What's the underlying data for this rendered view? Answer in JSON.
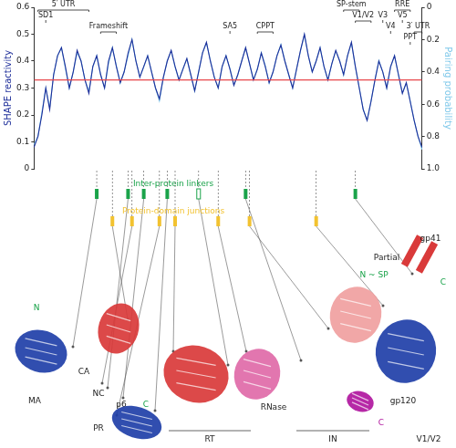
{
  "chart_data": {
    "type": "line",
    "categories": [
      null,
      null,
      null,
      null,
      null,
      null,
      null,
      null,
      null,
      null,
      null,
      null,
      null,
      null,
      null,
      null,
      null,
      null,
      null,
      null,
      null,
      null,
      null,
      null,
      null,
      null,
      null,
      null,
      null,
      null,
      null,
      null,
      null,
      null,
      null,
      null,
      null,
      null,
      null,
      null,
      null,
      null,
      null,
      null,
      null,
      null,
      null,
      null,
      null,
      null,
      null,
      null,
      null,
      null,
      null,
      null,
      null,
      null,
      null,
      null,
      null,
      null,
      null,
      null,
      null,
      null,
      null,
      null,
      null,
      null,
      null,
      null,
      null,
      null,
      null,
      null,
      null,
      null,
      null,
      null,
      null,
      null,
      null,
      null,
      null,
      null,
      null,
      null,
      null,
      null,
      null,
      null,
      null,
      null,
      null,
      null,
      null,
      null,
      null,
      null
    ],
    "series": [
      {
        "name": "SHAPE reactivity",
        "color": "#1f2f9a",
        "values": [
          0.08,
          0.12,
          0.2,
          0.3,
          0.22,
          0.35,
          0.42,
          0.45,
          0.38,
          0.3,
          0.36,
          0.44,
          0.4,
          0.33,
          0.28,
          0.38,
          0.42,
          0.35,
          0.3,
          0.4,
          0.45,
          0.38,
          0.32,
          0.36,
          0.43,
          0.48,
          0.4,
          0.34,
          0.38,
          0.42,
          0.36,
          0.3,
          0.26,
          0.34,
          0.4,
          0.44,
          0.38,
          0.33,
          0.37,
          0.41,
          0.35,
          0.29,
          0.36,
          0.43,
          0.47,
          0.4,
          0.34,
          0.3,
          0.38,
          0.42,
          0.37,
          0.31,
          0.35,
          0.4,
          0.45,
          0.39,
          0.33,
          0.37,
          0.43,
          0.38,
          0.32,
          0.36,
          0.42,
          0.46,
          0.4,
          0.35,
          0.3,
          0.37,
          0.44,
          0.5,
          0.42,
          0.36,
          0.4,
          0.45,
          0.38,
          0.33,
          0.39,
          0.44,
          0.4,
          0.35,
          0.42,
          0.47,
          0.38,
          0.3,
          0.22,
          0.18,
          0.25,
          0.33,
          0.4,
          0.36,
          0.3,
          0.38,
          0.42,
          0.35,
          0.28,
          0.32,
          0.25,
          0.18,
          0.12,
          0.08
        ]
      },
      {
        "name": "Pairing probability",
        "color": "#7fc8ea",
        "axis": "y2",
        "values": [
          0.85,
          0.8,
          0.65,
          0.5,
          0.62,
          0.42,
          0.3,
          0.25,
          0.38,
          0.5,
          0.4,
          0.28,
          0.33,
          0.45,
          0.52,
          0.37,
          0.3,
          0.42,
          0.5,
          0.35,
          0.25,
          0.36,
          0.47,
          0.4,
          0.3,
          0.2,
          0.33,
          0.43,
          0.37,
          0.3,
          0.4,
          0.5,
          0.58,
          0.44,
          0.33,
          0.27,
          0.37,
          0.45,
          0.38,
          0.32,
          0.42,
          0.52,
          0.4,
          0.28,
          0.22,
          0.33,
          0.43,
          0.5,
          0.37,
          0.3,
          0.38,
          0.48,
          0.42,
          0.33,
          0.25,
          0.35,
          0.45,
          0.38,
          0.28,
          0.36,
          0.47,
          0.4,
          0.3,
          0.23,
          0.33,
          0.42,
          0.5,
          0.38,
          0.27,
          0.17,
          0.3,
          0.4,
          0.33,
          0.25,
          0.37,
          0.45,
          0.35,
          0.27,
          0.33,
          0.42,
          0.3,
          0.22,
          0.37,
          0.5,
          0.63,
          0.7,
          0.58,
          0.45,
          0.33,
          0.4,
          0.5,
          0.37,
          0.3,
          0.42,
          0.53,
          0.47,
          0.58,
          0.7,
          0.8,
          0.88
        ]
      }
    ],
    "ylabel": "SHAPE reactivity",
    "y2label": "Pairing probability",
    "ylim": [
      0,
      0.6
    ],
    "yticks": [
      0,
      0.1,
      0.2,
      0.3,
      0.4,
      0.5,
      0.6
    ],
    "y2lim": [
      1,
      0
    ],
    "y2ticks": [
      0,
      0.2,
      0.4,
      0.6,
      0.8,
      {
        "value": 1,
        "label": "1.0"
      }
    ],
    "grid": false,
    "tick_labels": "y",
    "hlines": [
      {
        "value": 0.33,
        "color": "#e8474b"
      }
    ],
    "regions": [
      {
        "label": "5′ UTR",
        "start": 1,
        "end": 14
      },
      {
        "label": "SD1",
        "start": 3,
        "end": 3
      },
      {
        "label": "Frameshift",
        "start": 17,
        "end": 21
      },
      {
        "label": "SA5",
        "start": 50,
        "end": 50
      },
      {
        "label": "CPPT",
        "start": 57,
        "end": 61
      },
      {
        "label": "SP-stem",
        "start": 79,
        "end": 83
      },
      {
        "label": "V1/V2",
        "start": 82,
        "end": 86
      },
      {
        "label": "V3",
        "start": 89,
        "end": 89
      },
      {
        "label": "V4",
        "start": 91,
        "end": 91
      },
      {
        "label": "V5",
        "start": 94,
        "end": 94
      },
      {
        "label": "RRE",
        "start": 92,
        "end": 96
      },
      {
        "label": "PPT",
        "start": 96,
        "end": 96
      },
      {
        "label": "3′ UTR",
        "start": 97,
        "end": 99
      }
    ],
    "tracks": [
      {
        "label": "Inter-protein linkers",
        "color": "#1aa34a",
        "marks": [
          {
            "index": 16,
            "filled": true
          },
          {
            "index": 24,
            "filled": true
          },
          {
            "index": 28,
            "filled": true
          },
          {
            "index": 34,
            "filled": true
          },
          {
            "index": 42,
            "filled": false
          },
          {
            "index": 54,
            "filled": true
          },
          {
            "index": 82,
            "filled": true
          }
        ]
      },
      {
        "label": "Protein-domain junctions",
        "color": "#f2c230",
        "marks": [
          {
            "index": 20,
            "filled": true
          },
          {
            "index": 25,
            "filled": true
          },
          {
            "index": 32,
            "filled": true
          },
          {
            "index": 36,
            "filled": true
          },
          {
            "index": 47,
            "filled": true
          },
          {
            "index": 55,
            "filled": true
          },
          {
            "index": 72,
            "filled": true
          }
        ]
      }
    ],
    "structures": [
      {
        "label": "MA",
        "color": "#1f3fa8"
      },
      {
        "label": "CA",
        "color": "#d93a3a"
      },
      {
        "label": "NC",
        "color": "#888888"
      },
      {
        "label": "p6",
        "color": "#1aa34a"
      },
      {
        "label": "PR",
        "color": "#1f3fa8"
      },
      {
        "label": "RT",
        "color": "#d93a3a"
      },
      {
        "label": "RNase",
        "color": "#e06aa8"
      },
      {
        "label": "IN",
        "color": "#f0a0a0"
      },
      {
        "label": "gp120",
        "color": "#1f3fa8"
      },
      {
        "label": "gp41",
        "color": "#d93a3a"
      }
    ],
    "annotations": [
      {
        "text": "N",
        "color": "#1aa34a"
      },
      {
        "text": "C",
        "color": "#1aa34a"
      },
      {
        "text": "C",
        "color": "#b0169e"
      },
      {
        "text": "N ~ SP",
        "color": "#1aa34a"
      },
      {
        "text": "C",
        "color": "#1aa34a"
      },
      {
        "text": "Partial",
        "color": "#222222"
      },
      {
        "text": "V1/V2",
        "color": "#222222"
      }
    ]
  }
}
